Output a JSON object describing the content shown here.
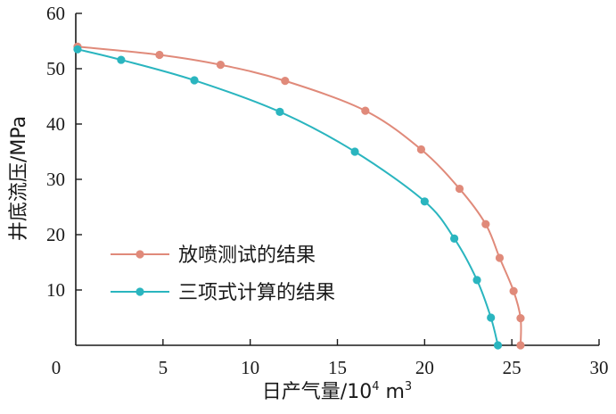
{
  "chart_data": {
    "type": "line",
    "title": "",
    "xlabel": "日产气量/10",
    "xlabel_sup": "4",
    "xlabel_unit": " m",
    "xlabel_unit_sup": "3",
    "ylabel": "井底流压/MPa",
    "xlim": [
      0,
      30
    ],
    "ylim": [
      0,
      60
    ],
    "x_ticks": [
      "0",
      "5",
      "10",
      "15",
      "20",
      "25",
      "30"
    ],
    "y_ticks": [
      "10",
      "20",
      "30",
      "40",
      "50",
      "60"
    ],
    "grid": false,
    "legend_position": "bottom-left",
    "series": [
      {
        "name": "放喷测试的结果",
        "color": "#e08a7a",
        "x": [
          0.1,
          4.8,
          8.3,
          12.0,
          16.6,
          19.8,
          22.0,
          23.5,
          24.3,
          25.1,
          25.5,
          25.5
        ],
        "y": [
          54.0,
          52.5,
          50.7,
          47.8,
          42.4,
          35.4,
          28.3,
          21.9,
          15.8,
          9.8,
          4.9,
          0.0
        ]
      },
      {
        "name": "三项式计算的结果",
        "color": "#2ab5bf",
        "x": [
          0.1,
          2.6,
          6.8,
          11.7,
          16.0,
          20.0,
          21.7,
          23.0,
          23.8,
          24.2
        ],
        "y": [
          53.5,
          51.6,
          47.9,
          42.2,
          35.0,
          26.0,
          19.3,
          11.8,
          5.0,
          0.0
        ]
      }
    ]
  }
}
